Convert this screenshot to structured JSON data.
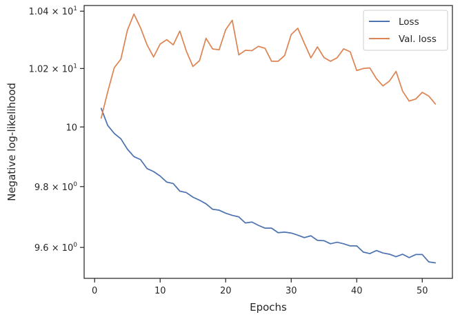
{
  "chart_data": {
    "type": "line",
    "title": "",
    "xlabel": "Epochs",
    "ylabel": "Negative log-likelihood",
    "yscale": "log",
    "xlim": [
      -1.6,
      54.6
    ],
    "ylim": [
      9.5,
      10.42
    ],
    "grid": false,
    "legend_position": "top-right",
    "x_ticks": [
      0,
      10,
      20,
      30,
      40,
      50
    ],
    "x_tick_labels": [
      "0",
      "10",
      "20",
      "30",
      "40",
      "50"
    ],
    "y_ticks": [
      9.6,
      9.8,
      10.0,
      10.2,
      10.4
    ],
    "y_tick_labels": [
      {
        "mantissa": "9.6",
        "exp": "0"
      },
      {
        "mantissa": "9.8",
        "exp": "0"
      },
      {
        "mantissa": "10",
        "exp": ""
      },
      {
        "mantissa": "1.02",
        "exp": "1"
      },
      {
        "mantissa": "1.04",
        "exp": "1"
      }
    ],
    "x": [
      1,
      2,
      3,
      4,
      5,
      6,
      7,
      8,
      9,
      10,
      11,
      12,
      13,
      14,
      15,
      16,
      17,
      18,
      19,
      20,
      21,
      22,
      23,
      24,
      25,
      26,
      27,
      28,
      29,
      30,
      31,
      32,
      33,
      34,
      35,
      36,
      37,
      38,
      39,
      40,
      41,
      42,
      43,
      44,
      45,
      46,
      47,
      48,
      49,
      50,
      51,
      52
    ],
    "series": [
      {
        "name": "Loss",
        "color": "#4c72b0",
        "values": [
          10.063,
          10.005,
          9.978,
          9.96,
          9.925,
          9.9,
          9.89,
          9.86,
          9.85,
          9.835,
          9.815,
          9.81,
          9.785,
          9.78,
          9.765,
          9.755,
          9.743,
          9.725,
          9.722,
          9.712,
          9.705,
          9.7,
          9.68,
          9.683,
          9.672,
          9.663,
          9.663,
          9.648,
          9.65,
          9.647,
          9.64,
          9.632,
          9.638,
          9.623,
          9.622,
          9.612,
          9.617,
          9.612,
          9.605,
          9.605,
          9.585,
          9.58,
          9.59,
          9.582,
          9.578,
          9.57,
          9.578,
          9.567,
          9.577,
          9.577,
          9.553,
          9.55
        ]
      },
      {
        "name": "Val. loss",
        "color": "#dd8452",
        "values": [
          10.03,
          10.12,
          10.203,
          10.232,
          10.333,
          10.39,
          10.342,
          10.282,
          10.24,
          10.285,
          10.3,
          10.282,
          10.33,
          10.26,
          10.207,
          10.227,
          10.305,
          10.268,
          10.265,
          10.335,
          10.368,
          10.247,
          10.263,
          10.262,
          10.277,
          10.27,
          10.225,
          10.225,
          10.245,
          10.318,
          10.34,
          10.288,
          10.237,
          10.275,
          10.238,
          10.225,
          10.237,
          10.268,
          10.258,
          10.193,
          10.2,
          10.202,
          10.165,
          10.14,
          10.157,
          10.19,
          10.122,
          10.088,
          10.095,
          10.118,
          10.105,
          10.078
        ]
      }
    ]
  }
}
